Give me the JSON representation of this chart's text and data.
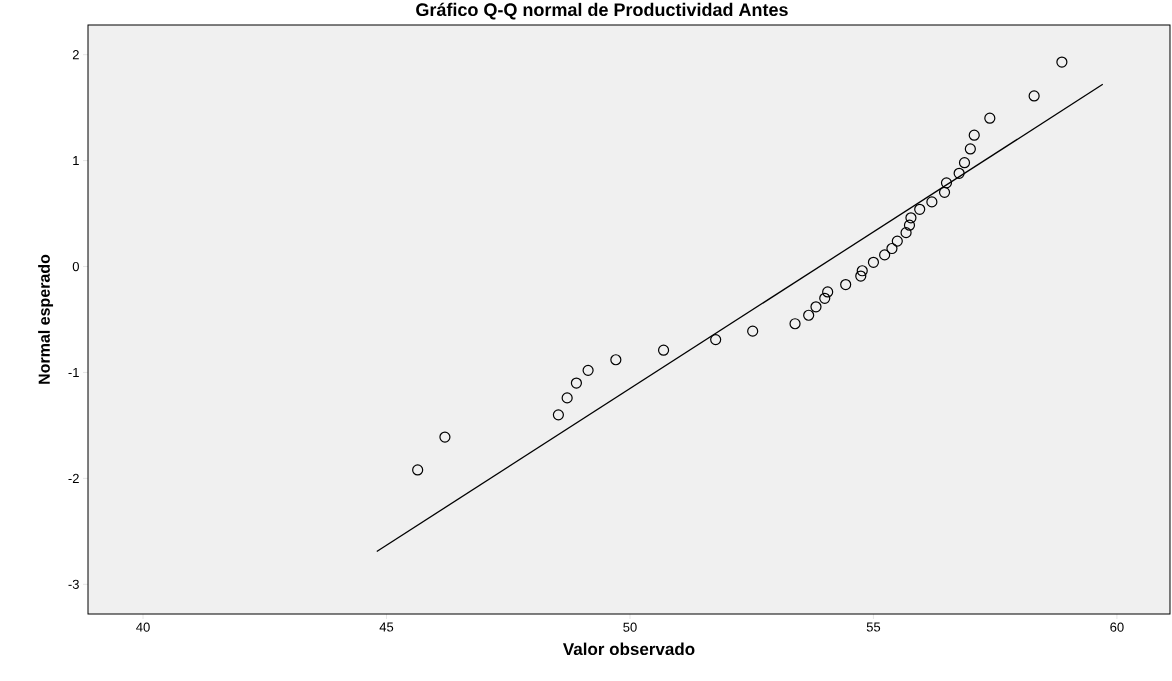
{
  "chart_data": {
    "type": "scatter",
    "title": "Gráfico Q-Q normal de Productividad Antes",
    "xlabel": "Valor observado",
    "ylabel": "Normal esperado",
    "xlim": [
      38.87,
      61.09
    ],
    "ylim": [
      -3.28,
      2.28
    ],
    "xticks": [
      40,
      45,
      50,
      55,
      60
    ],
    "yticks": [
      -3,
      -2,
      -1,
      0,
      1,
      2
    ],
    "marker": "circle",
    "series": [
      {
        "color": "#000000",
        "x": [
          45.64,
          46.2,
          48.53,
          48.71,
          48.9,
          49.14,
          49.71,
          50.69,
          51.76,
          52.52,
          53.39,
          53.67,
          53.82,
          54.0,
          54.06,
          54.43,
          54.74,
          54.77,
          55.0,
          55.23,
          55.38,
          55.49,
          55.67,
          55.74,
          55.77,
          55.95,
          56.2,
          56.46,
          56.5,
          56.76,
          56.87,
          56.99,
          57.07,
          57.39,
          58.3,
          58.87
        ],
        "values": [
          -1.92,
          -1.61,
          -1.4,
          -1.24,
          -1.1,
          -0.98,
          -0.88,
          -0.79,
          -0.69,
          -0.61,
          -0.54,
          -0.46,
          -0.38,
          -0.3,
          -0.24,
          -0.17,
          -0.09,
          -0.04,
          0.04,
          0.11,
          0.17,
          0.24,
          0.32,
          0.39,
          0.46,
          0.54,
          0.61,
          0.7,
          0.79,
          0.88,
          0.98,
          1.11,
          1.24,
          1.4,
          1.61,
          1.93
        ]
      },
      {
        "type": "line",
        "color": "#000000",
        "marker": "none",
        "x": [
          44.8,
          59.71
        ],
        "values": [
          -2.69,
          1.72
        ]
      }
    ]
  }
}
